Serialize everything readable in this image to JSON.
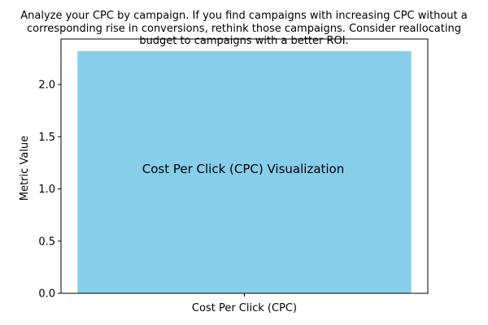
{
  "suptitle_lines": [
    "Analyze your CPC by campaign. If you find campaigns with increasing CPC without a",
    "corresponding rise in conversions, rethink those campaigns. Consider reallocating",
    "budget to campaigns with a better ROI."
  ],
  "chart_data": {
    "type": "bar",
    "title": "Cost Per Click (CPC) Visualization",
    "xlabel": "",
    "ylabel": "Metric Value",
    "categories": [
      "Cost Per Click (CPC)"
    ],
    "values": [
      2.32
    ],
    "ylim": [
      0,
      2.436
    ],
    "yticks": [
      "0.0",
      "0.5",
      "1.0",
      "1.5",
      "2.0"
    ],
    "bar_color": "#87ceeb",
    "grid": false,
    "legend": "none"
  }
}
